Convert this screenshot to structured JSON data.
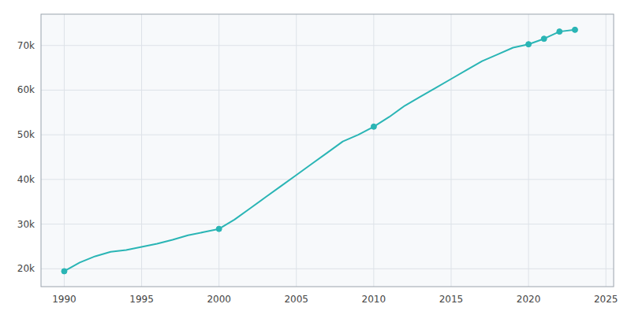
{
  "chart_data": {
    "type": "line",
    "x": [
      1990,
      1991,
      1992,
      1993,
      1994,
      1995,
      1996,
      1997,
      1998,
      1999,
      2000,
      2001,
      2002,
      2003,
      2004,
      2005,
      2006,
      2007,
      2008,
      2009,
      2010,
      2011,
      2012,
      2013,
      2014,
      2015,
      2016,
      2017,
      2018,
      2019,
      2020,
      2021,
      2022,
      2023
    ],
    "series": [
      {
        "type": "line",
        "color": "#2ab5b5",
        "values": [
          19454,
          21390,
          22800,
          23800,
          24200,
          24900,
          25600,
          26500,
          27500,
          28200,
          28928,
          31000,
          33500,
          36000,
          38500,
          41000,
          43500,
          46000,
          48500,
          50000,
          51821,
          54000,
          56500,
          58500,
          60500,
          62500,
          64500,
          66500,
          68000,
          69500,
          70265,
          71500,
          73100,
          73500
        ]
      },
      {
        "type": "scatter",
        "marker": "circle",
        "color": "#2ab5b5",
        "values": [
          19454,
          null,
          null,
          null,
          null,
          null,
          null,
          null,
          null,
          null,
          28928,
          null,
          null,
          null,
          null,
          null,
          null,
          null,
          null,
          null,
          51821,
          null,
          null,
          null,
          null,
          null,
          null,
          null,
          null,
          null,
          70265,
          71500,
          73100,
          73500
        ]
      }
    ],
    "xlim": [
      1988.5,
      2025.5
    ],
    "ylim": [
      16000,
      77000
    ],
    "xticks": [
      1990,
      1995,
      2000,
      2005,
      2010,
      2015,
      2020,
      2025
    ],
    "yticks": [
      {
        "value": 20000,
        "label": "20k"
      },
      {
        "value": 30000,
        "label": "30k"
      },
      {
        "value": 40000,
        "label": "40k"
      },
      {
        "value": 50000,
        "label": "50k"
      },
      {
        "value": 60000,
        "label": "60k"
      },
      {
        "value": 70000,
        "label": "70k"
      }
    ],
    "grid": true
  }
}
